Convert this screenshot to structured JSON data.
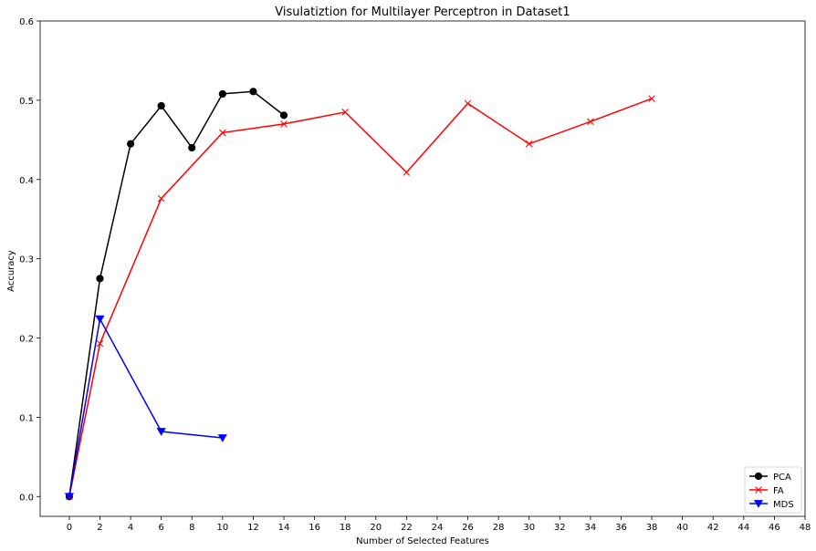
{
  "chart_data": {
    "type": "line",
    "title": "Visulatiztion for Multilayer Perceptron in Dataset1",
    "xlabel": "Number of Selected Features",
    "ylabel": "Accuracy",
    "xlim": [
      -1.9,
      48
    ],
    "ylim": [
      -0.025,
      0.6
    ],
    "xticks": [
      0,
      2,
      4,
      6,
      8,
      10,
      12,
      14,
      16,
      18,
      20,
      22,
      24,
      26,
      28,
      30,
      32,
      34,
      36,
      38,
      40,
      42,
      44,
      46,
      48
    ],
    "yticks": [
      0.0,
      0.1,
      0.2,
      0.3,
      0.4,
      0.5,
      0.6
    ],
    "ytick_labels": [
      "0.0",
      "0.1",
      "0.2",
      "0.3",
      "0.4",
      "0.5",
      "0.6"
    ],
    "grid": false,
    "legend_position": "lower-right",
    "series": [
      {
        "name": "PCA",
        "color": "#000000",
        "marker": "circle",
        "x": [
          0,
          2,
          4,
          6,
          8,
          10,
          12,
          14
        ],
        "y": [
          0.0,
          0.275,
          0.445,
          0.493,
          0.44,
          0.508,
          0.511,
          0.481
        ]
      },
      {
        "name": "FA",
        "color": "#ff0000",
        "marker": "x",
        "x": [
          0,
          2,
          6,
          10,
          14,
          18,
          22,
          26,
          30,
          34,
          38
        ],
        "y": [
          0.0,
          0.193,
          0.376,
          0.459,
          0.47,
          0.485,
          0.409,
          0.496,
          0.445,
          0.473,
          0.502
        ]
      },
      {
        "name": "MDS",
        "color": "#0000ff",
        "marker": "triangle-down",
        "x": [
          0,
          2,
          6,
          10
        ],
        "y": [
          0.0,
          0.224,
          0.082,
          0.074
        ]
      }
    ]
  }
}
